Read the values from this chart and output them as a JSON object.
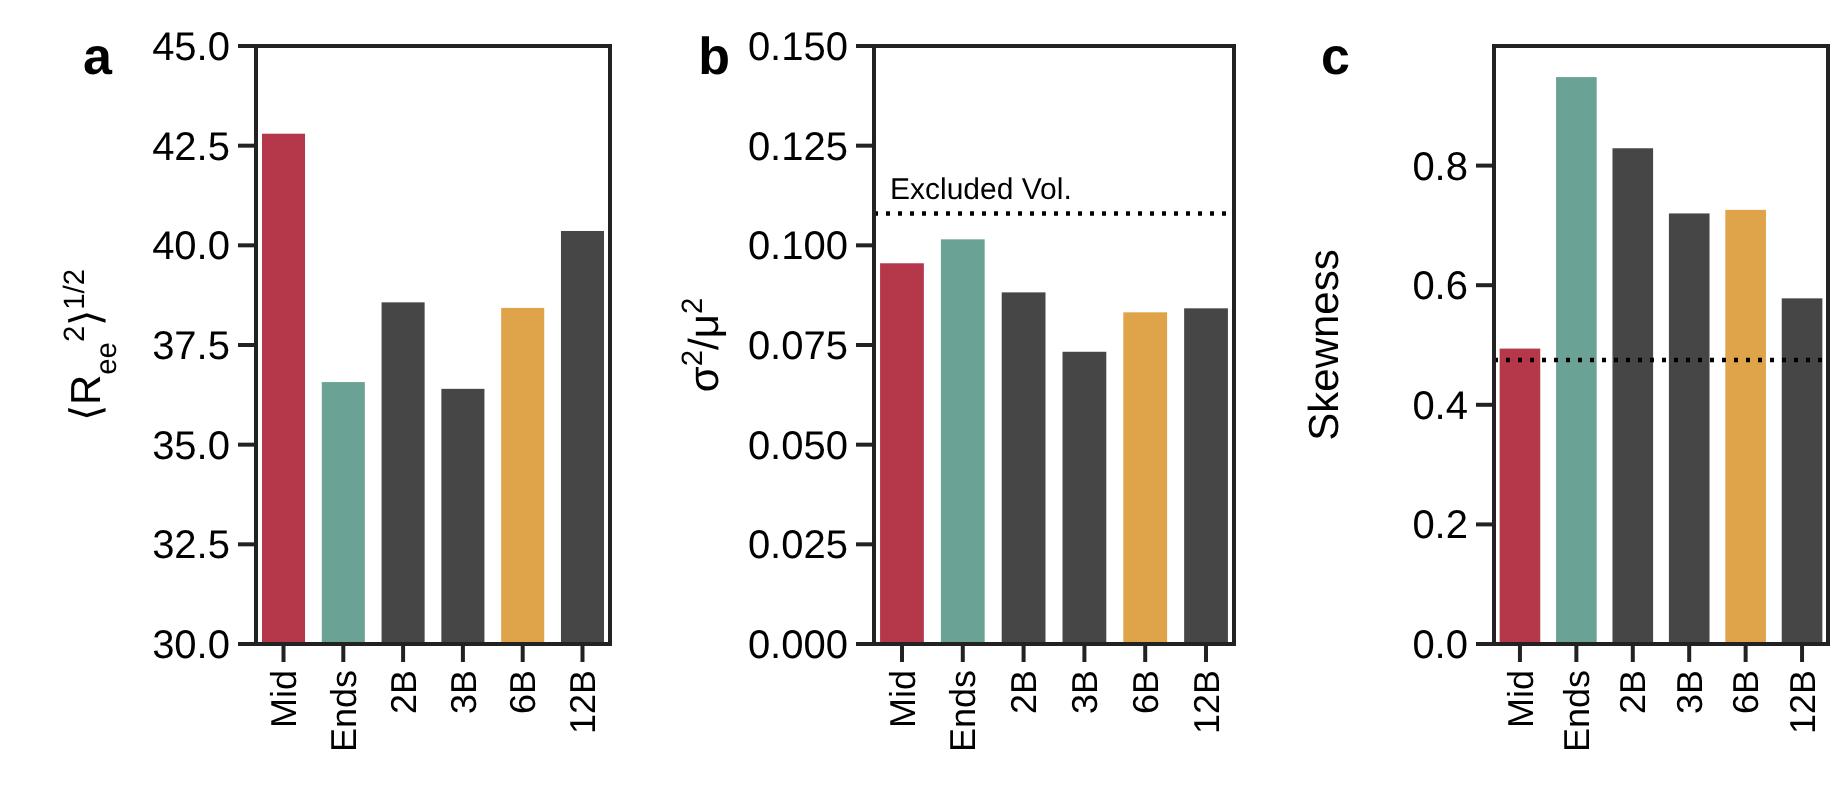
{
  "chart_data": [
    {
      "type": "bar",
      "title": "a",
      "ylabel": "⟨R$_{ee}$$^{2}$⟩$^{1/2}$",
      "categories": [
        "Mid",
        "Ends",
        "2B",
        "3B",
        "6B",
        "12B"
      ],
      "values": [
        42.8,
        36.57,
        38.57,
        36.4,
        38.43,
        40.36
      ],
      "colors": [
        "#b5374a",
        "#6ba296",
        "#464646",
        "#464646",
        "#dfa449",
        "#464646"
      ],
      "ylim": [
        30,
        45
      ],
      "yticks": [
        {
          "value": 30,
          "label": "30.0"
        },
        {
          "value": 32.5,
          "label": "32.5"
        },
        {
          "value": 35,
          "label": "35.0"
        },
        {
          "value": 37.5,
          "label": "37.5"
        },
        {
          "value": 40,
          "label": "40.0"
        },
        {
          "value": 42.5,
          "label": "42.5"
        },
        {
          "value": 45,
          "label": "45.0"
        }
      ]
    },
    {
      "type": "bar",
      "title": "b",
      "ylabel": "σ$^{2}$/μ$^{2}$",
      "categories": [
        "Mid",
        "Ends",
        "2B",
        "3B",
        "6B",
        "12B"
      ],
      "values": [
        0.0955,
        0.1015,
        0.0882,
        0.0733,
        0.0832,
        0.0842
      ],
      "colors": [
        "#b5374a",
        "#6ba296",
        "#464646",
        "#464646",
        "#dfa449",
        "#464646"
      ],
      "ylim": [
        0,
        0.15
      ],
      "yticks": [
        {
          "value": 0,
          "label": "0.000"
        },
        {
          "value": 0.025,
          "label": "0.025"
        },
        {
          "value": 0.05,
          "label": "0.050"
        },
        {
          "value": 0.075,
          "label": "0.075"
        },
        {
          "value": 0.1,
          "label": "0.100"
        },
        {
          "value": 0.125,
          "label": "0.125"
        },
        {
          "value": 0.15,
          "label": "0.150"
        }
      ],
      "ref_lines": [
        {
          "axis": "y",
          "value": 0.108,
          "label": "Excluded Vol.",
          "color": "#000000",
          "line_style": "dotted"
        }
      ]
    },
    {
      "type": "bar",
      "title": "c",
      "ylabel": "Skewness",
      "categories": [
        "Mid",
        "Ends",
        "2B",
        "3B",
        "6B",
        "12B"
      ],
      "values": [
        0.494,
        0.948,
        0.829,
        0.72,
        0.726,
        0.578
      ],
      "colors": [
        "#b5374a",
        "#6ba296",
        "#464646",
        "#464646",
        "#dfa449",
        "#464646"
      ],
      "ylim": [
        0,
        1
      ],
      "yticks": [
        {
          "value": 0,
          "label": "0.0"
        },
        {
          "value": 0.2,
          "label": "0.2"
        },
        {
          "value": 0.4,
          "label": "0.4"
        },
        {
          "value": 0.6,
          "label": "0.6"
        },
        {
          "value": 0.8,
          "label": "0.8"
        }
      ],
      "ref_lines": [
        {
          "axis": "y",
          "value": 0.475,
          "color": "#000000",
          "line_style": "dotted"
        }
      ]
    }
  ]
}
